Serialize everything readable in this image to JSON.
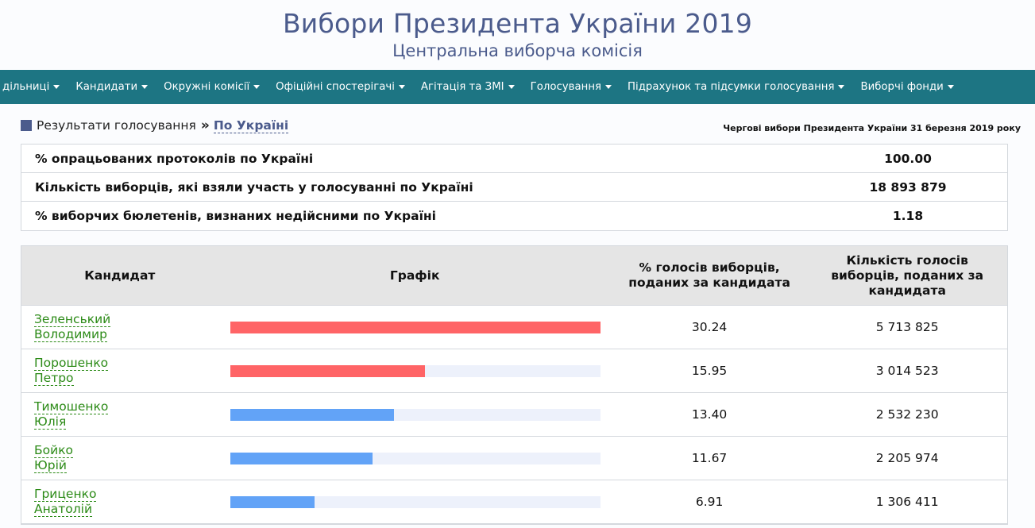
{
  "header": {
    "title": "Вибори Президента України 2019",
    "subtitle": "Центральна виборча комісія"
  },
  "nav": {
    "items": [
      {
        "label": "дільниці"
      },
      {
        "label": "Кандидати"
      },
      {
        "label": "Окружні комісії"
      },
      {
        "label": "Офіційні спостерігачі"
      },
      {
        "label": "Агітація та ЗМІ"
      },
      {
        "label": "Голосування"
      },
      {
        "label": "Підрахунок та підсумки голосування"
      },
      {
        "label": "Виборчі фонди"
      }
    ]
  },
  "breadcrumb": {
    "section": "Результати голосування",
    "separator": "»",
    "current": "По Україні"
  },
  "election_title": "Чергові вибори Президента України 31 березня 2019 року",
  "summary": [
    {
      "label": "% опрацьованих протоколів по Україні",
      "value": "100.00"
    },
    {
      "label": "Кількість виборців, які взяли участь у голосуванні по Україні",
      "value": "18 893 879"
    },
    {
      "label": "% виборчих бюлетенів, визнаних недійсними по Україні",
      "value": "1.18"
    }
  ],
  "results": {
    "headers": {
      "candidate": "Кандидат",
      "graph": "Графік",
      "percent_line1": "% голосів виборців,",
      "percent_line2": "поданих за кандидата",
      "votes_line1": "Кількість голосів",
      "votes_line2": "виборців, поданих за",
      "votes_line3": "кандидата"
    },
    "rows": [
      {
        "surname": "Зеленський",
        "name": "Володимир",
        "percent": "30.24",
        "votes": "5 713 825",
        "bar_fraction": 1.0,
        "bar_color": "#ff6466"
      },
      {
        "surname": "Порошенко",
        "name": "Петро",
        "percent": "15.95",
        "votes": "3 014 523",
        "bar_fraction": 0.5275,
        "bar_color": "#ff6466"
      },
      {
        "surname": "Тимошенко",
        "name": "Юлія",
        "percent": "13.40",
        "votes": "2 532 230",
        "bar_fraction": 0.4431,
        "bar_color": "#62a3f7"
      },
      {
        "surname": "Бойко",
        "name": "Юрій",
        "percent": "11.67",
        "votes": "2 205 974",
        "bar_fraction": 0.3859,
        "bar_color": "#62a3f7"
      },
      {
        "surname": "Гриценко",
        "name": "Анатолій",
        "percent": "6.91",
        "votes": "1 306 411",
        "bar_fraction": 0.2285,
        "bar_color": "#62a3f7"
      }
    ]
  },
  "colors": {
    "brand": "#4b5b8c",
    "navbar": "#1d7583",
    "candidate_link": "#2b8a16",
    "bar_track": "#edf1fb"
  }
}
